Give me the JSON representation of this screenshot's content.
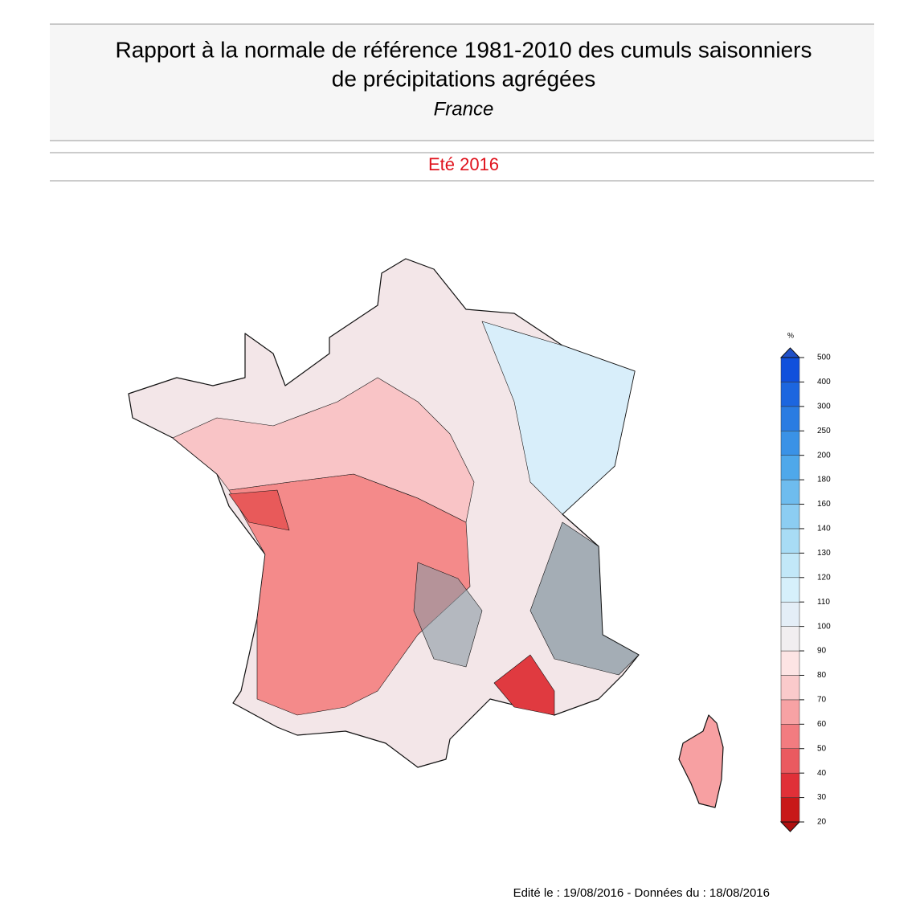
{
  "header": {
    "title_lines": [
      "Rapport à la normale de référence 1981-2010 des cumuls saisonniers",
      "de précipitations agrégées"
    ],
    "region": "France"
  },
  "period": "Eté 2016",
  "legend": {
    "unit": "%",
    "ticks": [
      20,
      30,
      40,
      50,
      60,
      70,
      80,
      90,
      100,
      110,
      120,
      130,
      140,
      160,
      180,
      200,
      250,
      300,
      400,
      500
    ],
    "colors": [
      "#c81818",
      "#e03038",
      "#ea5a60",
      "#f27c80",
      "#f7a2a4",
      "#facacb",
      "#fde4e4",
      "#f1eef0",
      "#e4eef7",
      "#d6f0fb",
      "#c2e8f8",
      "#a8dcf5",
      "#8ccdf2",
      "#6ebcee",
      "#4fa8ea",
      "#3a92e6",
      "#2a7ce2",
      "#1c66df",
      "#1050dc"
    ],
    "under_color": "#b01010",
    "over_color": "#2050c8"
  },
  "footer": "Edité le : 19/08/2016 - Données du : 18/08/2016"
}
